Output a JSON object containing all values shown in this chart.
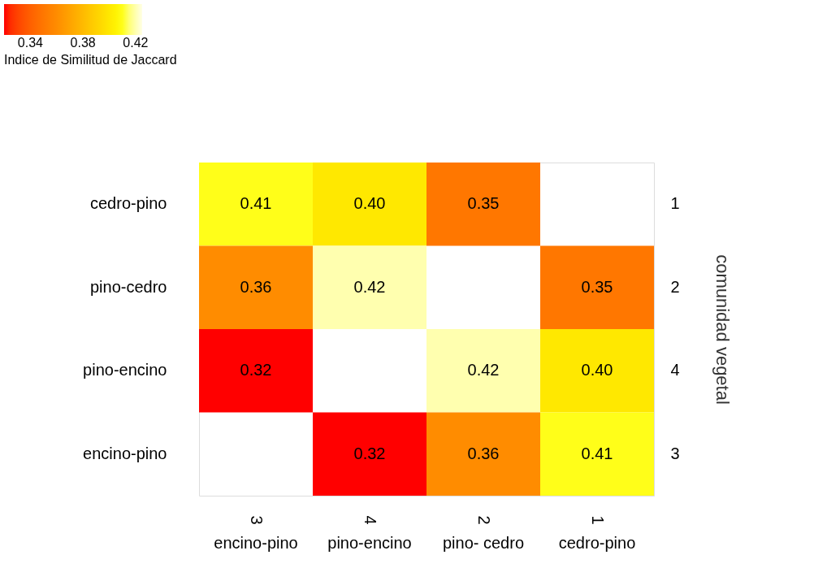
{
  "chart_data": {
    "type": "heatmap",
    "categories": [
      "encino-pino",
      "pino-encino",
      "pino- cedro",
      "cedro-pino"
    ],
    "y_categories": [
      "cedro-pino",
      "pino-cedro",
      "pino-encino",
      "encino-pino"
    ],
    "y2_categories": [
      "1",
      "2",
      "4",
      "3"
    ],
    "cells": [
      [
        0.41,
        0.4,
        0.35,
        null
      ],
      [
        0.36,
        0.42,
        null,
        0.35
      ],
      [
        0.32,
        null,
        0.42,
        0.4
      ],
      [
        null,
        0.32,
        0.36,
        0.41
      ]
    ],
    "cell_labels": [
      [
        "0.41",
        "0.40",
        "0.35",
        null
      ],
      [
        "0.36",
        "0.42",
        null,
        "0.35"
      ],
      [
        "0.32",
        null,
        "0.42",
        "0.40"
      ],
      [
        null,
        "0.32",
        "0.36",
        "0.41"
      ]
    ],
    "clim": [
      0.32,
      0.425
    ],
    "cticks": [
      0.34,
      0.38,
      0.42
    ],
    "clabel": "Indice de Similitud de Jaccard",
    "y2label": "comunidad vegetal",
    "annotations": [
      "3",
      "4",
      "2",
      "1"
    ]
  }
}
